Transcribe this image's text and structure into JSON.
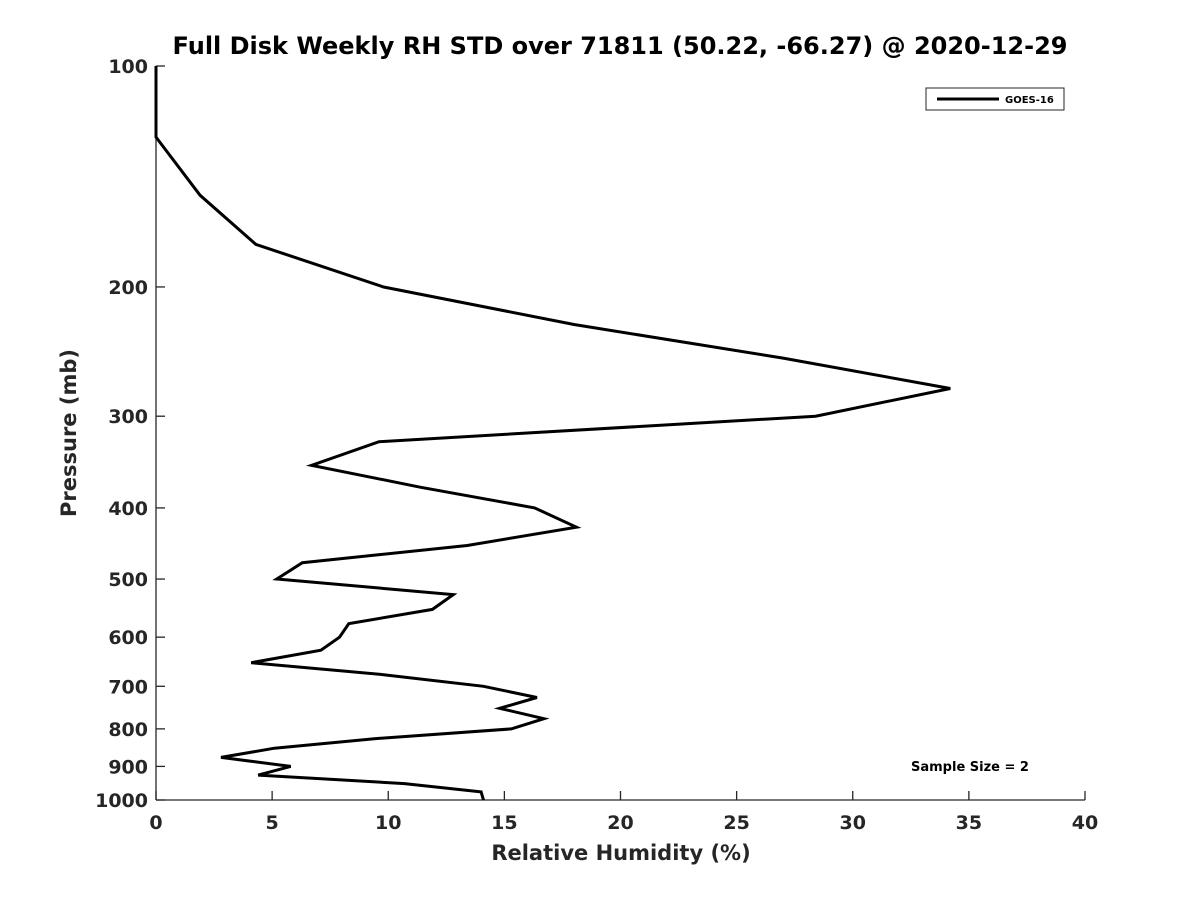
{
  "chart_data": {
    "type": "line",
    "title": "Full Disk Weekly RH STD over 71811 (50.22, -66.27) @ 2020-12-29",
    "xlabel": "Relative Humidity (%)",
    "ylabel": "Pressure (mb)",
    "xlim": [
      0,
      40
    ],
    "ylim": [
      100,
      1000
    ],
    "yscale": "log",
    "y_reversed": true,
    "xticks": [
      0,
      5,
      10,
      15,
      20,
      25,
      30,
      35,
      40
    ],
    "yticks": [
      100,
      200,
      300,
      400,
      500,
      600,
      700,
      800,
      900,
      1000
    ],
    "grid": false,
    "legend_position": "top-right",
    "series": [
      {
        "name": "GOES-16",
        "color": "#000000",
        "points": [
          {
            "p": 100,
            "rh": 0.0
          },
          {
            "p": 125,
            "rh": 0.0
          },
          {
            "p": 150,
            "rh": 1.9
          },
          {
            "p": 175,
            "rh": 4.3
          },
          {
            "p": 200,
            "rh": 9.8
          },
          {
            "p": 225,
            "rh": 18.0
          },
          {
            "p": 250,
            "rh": 27.0
          },
          {
            "p": 275,
            "rh": 34.2
          },
          {
            "p": 300,
            "rh": 28.4
          },
          {
            "p": 325,
            "rh": 9.6
          },
          {
            "p": 350,
            "rh": 6.7
          },
          {
            "p": 375,
            "rh": 11.4
          },
          {
            "p": 400,
            "rh": 16.3
          },
          {
            "p": 425,
            "rh": 18.1
          },
          {
            "p": 450,
            "rh": 13.4
          },
          {
            "p": 475,
            "rh": 6.3
          },
          {
            "p": 500,
            "rh": 5.2
          },
          {
            "p": 525,
            "rh": 12.8
          },
          {
            "p": 550,
            "rh": 11.9
          },
          {
            "p": 575,
            "rh": 8.3
          },
          {
            "p": 600,
            "rh": 7.9
          },
          {
            "p": 625,
            "rh": 7.1
          },
          {
            "p": 650,
            "rh": 4.1
          },
          {
            "p": 675,
            "rh": 9.8
          },
          {
            "p": 700,
            "rh": 14.1
          },
          {
            "p": 725,
            "rh": 16.4
          },
          {
            "p": 750,
            "rh": 14.8
          },
          {
            "p": 775,
            "rh": 16.7
          },
          {
            "p": 800,
            "rh": 15.3
          },
          {
            "p": 825,
            "rh": 9.4
          },
          {
            "p": 850,
            "rh": 5.1
          },
          {
            "p": 875,
            "rh": 2.8
          },
          {
            "p": 900,
            "rh": 5.8
          },
          {
            "p": 925,
            "rh": 4.4
          },
          {
            "p": 950,
            "rh": 10.7
          },
          {
            "p": 975,
            "rh": 14.0
          },
          {
            "p": 1000,
            "rh": 14.1
          }
        ]
      }
    ],
    "annotations": [
      {
        "text": "Sample Size = 2",
        "position": "bottom-right"
      }
    ]
  }
}
